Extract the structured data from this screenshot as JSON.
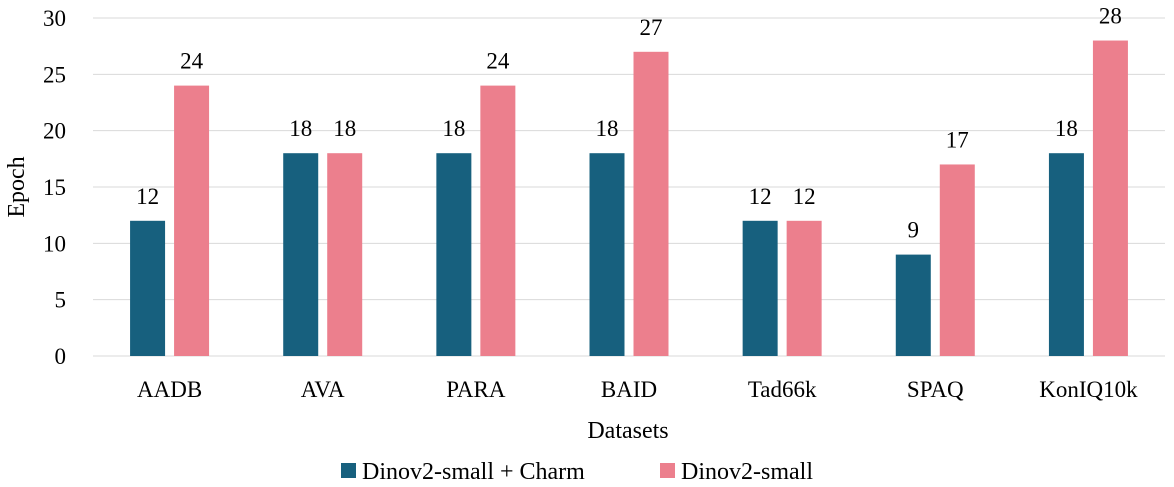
{
  "chart_data": {
    "type": "bar",
    "title": "",
    "xlabel": "Datasets",
    "ylabel": "Epoch",
    "ylim": [
      0,
      30
    ],
    "yticks": [
      0,
      5,
      10,
      15,
      20,
      25,
      30
    ],
    "grid": true,
    "legend_position": "bottom",
    "categories": [
      "AADB",
      "AVA",
      "PARA",
      "BAID",
      "Tad66k",
      "SPAQ",
      "KonIQ10k"
    ],
    "series": [
      {
        "name": "Dinov2-small + Charm",
        "color": "#17607e",
        "values": [
          12,
          18,
          18,
          18,
          12,
          9,
          18
        ]
      },
      {
        "name": "Dinov2-small",
        "color": "#ec7f8d",
        "values": [
          24,
          18,
          24,
          27,
          12,
          17,
          28
        ]
      }
    ]
  }
}
